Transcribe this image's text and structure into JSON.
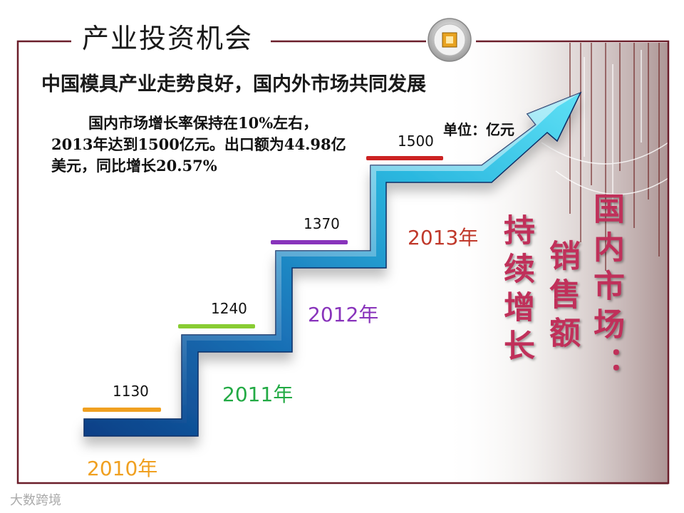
{
  "slide": {
    "section_title": "产业投资机会",
    "subtitle": "中国模具产业走势良好，国内外市场共同发展",
    "description": "国内市场增长率保持在10%左右，2013年达到1500亿元。出口额为44.98亿美元，同比增长20.57%",
    "unit_label": "单位：亿元",
    "side_heading_1": "国内市场：",
    "side_heading_2": "销售额",
    "side_heading_3": "持续增长",
    "watermark": "大数跨境"
  },
  "chart_data": {
    "type": "bar",
    "categories": [
      "2010年",
      "2011年",
      "2012年",
      "2013年"
    ],
    "values": [
      1130,
      1240,
      1370,
      1500
    ],
    "value_labels": [
      "1130",
      "1240",
      "1370",
      "1500"
    ],
    "unit": "亿元",
    "colors": {
      "2010年": "#f0a020",
      "2011年": "#22aa44",
      "2012年": "#8833bb",
      "2013年": "#c0392b",
      "accent": "#c0305a"
    },
    "bar_colors": [
      "#f0a020",
      "#88cc33",
      "#8833bb",
      "#cc2222"
    ]
  }
}
